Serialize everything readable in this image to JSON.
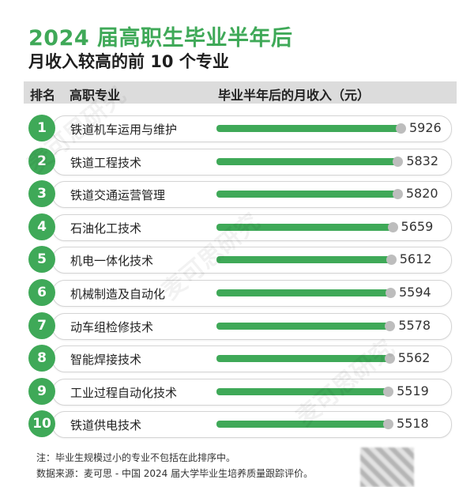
{
  "title": "2024 届高职生毕业半年后",
  "subtitle": "月收入较高的前 10 个专业",
  "header": {
    "rank": "排名",
    "major": "高职专业",
    "income": "毕业半年后的月收入（元）"
  },
  "colors": {
    "accent": "#3fa958",
    "bar_end": "#bdbdbd",
    "header_band": "#dcdcdc"
  },
  "chart_data": {
    "type": "bar",
    "orientation": "horizontal",
    "categories": [
      "铁道机车运用与维护",
      "铁道工程技术",
      "铁道交通运营管理",
      "石油化工技术",
      "机电一体化技术",
      "机械制造及自动化",
      "动车组检修技术",
      "智能焊接技术",
      "工业过程自动化技术",
      "铁道供电技术"
    ],
    "ranks": [
      "1",
      "2",
      "3",
      "4",
      "5",
      "6",
      "7",
      "8",
      "9",
      "10"
    ],
    "values": [
      5926,
      5832,
      5820,
      5659,
      5612,
      5594,
      5578,
      5562,
      5519,
      5518
    ],
    "title": "2024 届高职生毕业半年后月收入较高的前 10 个专业",
    "xlabel": "",
    "ylabel": "毕业半年后的月收入（元）",
    "grid": false,
    "legend": "none"
  },
  "footnotes": {
    "note": "注：毕业生规模过小的专业不包括在此排序中。",
    "source": "数据来源：麦可思 - 中国 2024 届大学毕业生培养质量跟踪评价。"
  },
  "watermark": "麦可思研究"
}
